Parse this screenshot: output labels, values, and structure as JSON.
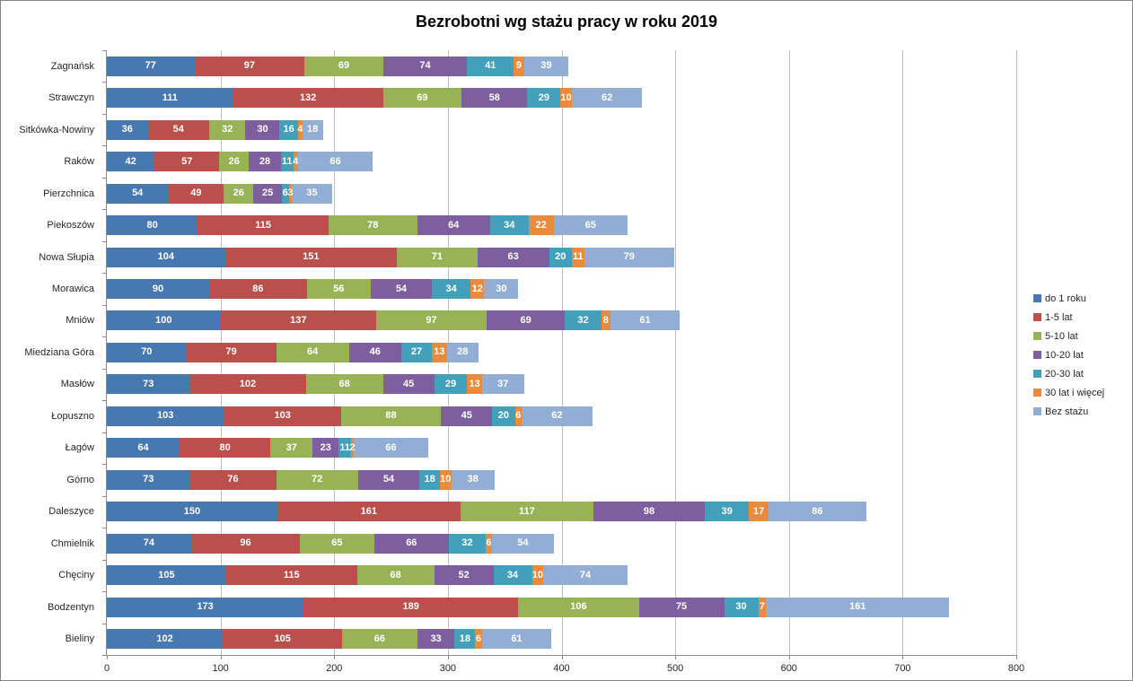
{
  "title": "Bezrobotni wg stażu pracy w roku 2019",
  "colors": {
    "gridline": "#bfbfbf",
    "axis": "#8c8c8c",
    "text": "#262626",
    "value_label": "#ffffff",
    "frame_border": "#848484"
  },
  "chart_data": {
    "type": "bar",
    "orientation": "horizontal",
    "stacked": true,
    "title": "Bezrobotni wg stażu pracy w roku 2019",
    "xlabel": "",
    "ylabel": "",
    "xlim": [
      0,
      800
    ],
    "x_ticks": [
      0,
      100,
      200,
      300,
      400,
      500,
      600,
      700,
      800
    ],
    "grid": true,
    "legend_position": "right",
    "categories": [
      "Zagnańsk",
      "Strawczyn",
      "Sitkówka-Nowiny",
      "Raków",
      "Pierzchnica",
      "Piekoszów",
      "Nowa Słupia",
      "Morawica",
      "Mniów",
      "Miedziana Góra",
      "Masłów",
      "Łopuszno",
      "Łagów",
      "Górno",
      "Daleszyce",
      "Chmielnik",
      "Chęciny",
      "Bodzentyn",
      "Bieliny"
    ],
    "series": [
      {
        "name": "do 1 roku",
        "color": "#4878b0",
        "values": [
          77,
          111,
          36,
          42,
          54,
          80,
          104,
          90,
          100,
          70,
          73,
          103,
          64,
          73,
          150,
          74,
          105,
          173,
          102
        ]
      },
      {
        "name": "1-5 lat",
        "color": "#bb4f4b",
        "values": [
          97,
          132,
          54,
          57,
          49,
          115,
          151,
          86,
          137,
          79,
          102,
          103,
          80,
          76,
          161,
          96,
          115,
          189,
          105
        ]
      },
      {
        "name": "5-10 lat",
        "color": "#98b355",
        "values": [
          69,
          69,
          32,
          26,
          26,
          78,
          71,
          56,
          97,
          64,
          68,
          88,
          37,
          72,
          117,
          65,
          68,
          106,
          66
        ]
      },
      {
        "name": "10-20 lat",
        "color": "#7d5fa0",
        "values": [
          74,
          58,
          30,
          28,
          25,
          64,
          63,
          54,
          69,
          46,
          45,
          45,
          23,
          54,
          98,
          66,
          52,
          75,
          33
        ]
      },
      {
        "name": "20-30 lat",
        "color": "#43a0bb",
        "values": [
          41,
          29,
          16,
          11,
          6,
          34,
          20,
          34,
          32,
          27,
          29,
          20,
          11,
          18,
          39,
          32,
          34,
          30,
          18
        ]
      },
      {
        "name": "30 lat i więcej",
        "color": "#e88b3f",
        "values": [
          9,
          10,
          4,
          4,
          3,
          22,
          11,
          12,
          8,
          13,
          13,
          6,
          2,
          10,
          17,
          6,
          10,
          7,
          6
        ]
      },
      {
        "name": "Bez stażu",
        "color": "#92aed4",
        "values": [
          39,
          62,
          18,
          66,
          35,
          65,
          79,
          30,
          61,
          28,
          37,
          62,
          66,
          38,
          86,
          54,
          74,
          161,
          61
        ]
      }
    ]
  }
}
